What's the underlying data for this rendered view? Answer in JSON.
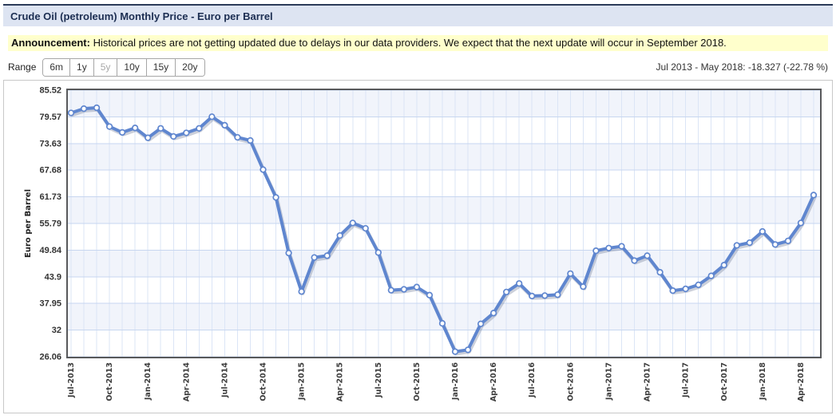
{
  "header": {
    "title": "Crude Oil (petroleum) Monthly Price - Euro per Barrel"
  },
  "announcement": {
    "label": "Announcement:",
    "text": " Historical prices are not getting updated due to delays in our data providers. We expect that the next update will occur in September 2018."
  },
  "range_bar": {
    "label": "Range",
    "buttons": [
      {
        "label": "6m",
        "selected": false
      },
      {
        "label": "1y",
        "selected": false
      },
      {
        "label": "5y",
        "selected": true
      },
      {
        "label": "10y",
        "selected": false
      },
      {
        "label": "15y",
        "selected": false
      },
      {
        "label": "20y",
        "selected": false
      }
    ],
    "summary": "Jul 2013 - May 2018: -18.327 (-22.78 %)"
  },
  "chart_data": {
    "type": "line",
    "title": "Crude Oil (petroleum) Monthly Price - Euro per Barrel",
    "xlabel": "",
    "ylabel": "Euro per Barrel",
    "ylim": [
      26.06,
      85.52
    ],
    "y_ticks": [
      {
        "value": 85.52,
        "label": "85.52"
      },
      {
        "value": 79.57,
        "label": "79.57"
      },
      {
        "value": 73.63,
        "label": "73.63"
      },
      {
        "value": 67.68,
        "label": "67.68"
      },
      {
        "value": 61.73,
        "label": "61.73"
      },
      {
        "value": 55.79,
        "label": "55.79"
      },
      {
        "value": 49.84,
        "label": "49.84"
      },
      {
        "value": 43.9,
        "label": "43.9"
      },
      {
        "value": 37.95,
        "label": "37.95"
      },
      {
        "value": 32,
        "label": "32"
      },
      {
        "value": 26.06,
        "label": "26.06"
      }
    ],
    "x_tick_every": 3,
    "x": [
      "Jul-2013",
      "Aug-2013",
      "Sep-2013",
      "Oct-2013",
      "Nov-2013",
      "Dec-2013",
      "Jan-2014",
      "Feb-2014",
      "Mar-2014",
      "Apr-2014",
      "May-2014",
      "Jun-2014",
      "Jul-2014",
      "Aug-2014",
      "Sep-2014",
      "Oct-2014",
      "Nov-2014",
      "Dec-2014",
      "Jan-2015",
      "Feb-2015",
      "Mar-2015",
      "Apr-2015",
      "May-2015",
      "Jun-2015",
      "Jul-2015",
      "Aug-2015",
      "Sep-2015",
      "Oct-2015",
      "Nov-2015",
      "Dec-2015",
      "Jan-2016",
      "Feb-2016",
      "Mar-2016",
      "Apr-2016",
      "May-2016",
      "Jun-2016",
      "Jul-2016",
      "Aug-2016",
      "Sep-2016",
      "Oct-2016",
      "Nov-2016",
      "Dec-2016",
      "Jan-2017",
      "Feb-2017",
      "Mar-2017",
      "Apr-2017",
      "May-2017",
      "Jun-2017",
      "Jul-2017",
      "Aug-2017",
      "Sep-2017",
      "Oct-2017",
      "Nov-2017",
      "Dec-2017",
      "Jan-2018",
      "Feb-2018",
      "Mar-2018",
      "Apr-2018",
      "May-2018"
    ],
    "values": [
      80.45,
      81.4,
      81.6,
      77.4,
      76.1,
      77.1,
      74.9,
      77.0,
      75.2,
      76.0,
      77.0,
      79.6,
      77.7,
      75.0,
      74.3,
      67.8,
      61.6,
      49.2,
      40.6,
      48.2,
      48.6,
      53.1,
      55.9,
      54.7,
      49.3,
      40.9,
      41.1,
      41.6,
      39.8,
      33.5,
      27.2,
      27.6,
      33.4,
      35.8,
      40.5,
      42.4,
      39.6,
      39.7,
      39.9,
      44.6,
      41.7,
      49.7,
      50.3,
      50.7,
      47.5,
      48.6,
      44.9,
      40.8,
      41.2,
      42.1,
      44.1,
      46.5,
      50.9,
      51.5,
      54.0,
      51.1,
      51.9,
      55.9,
      62.12
    ],
    "grid": {
      "horizontal": true,
      "vertical_monthly": true,
      "alternating_bands": true
    },
    "legend": {
      "visible": false
    },
    "colors": {
      "line": "#5f86cf",
      "marker_fill": "#ffffff",
      "band": "#f1f4fb",
      "grid_h": "#c7d6f0",
      "grid_v": "#dbe5f6",
      "plot_border": "#58595b",
      "title_bar_bg": "#dde4f2",
      "title_text": "#1c2e52",
      "announcement_bg": "#ffffcc",
      "top_rule": "#2b3b59"
    }
  }
}
